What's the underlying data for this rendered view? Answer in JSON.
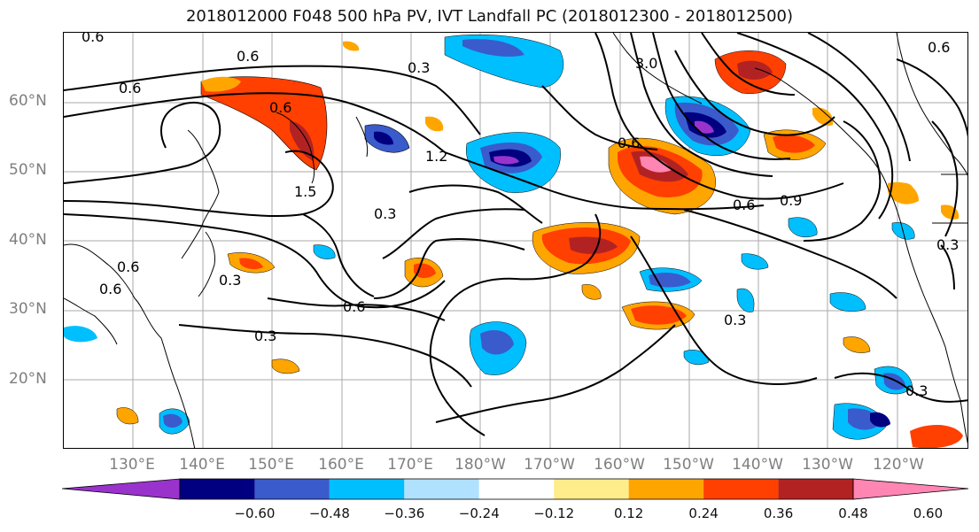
{
  "title": "2018012000 F048 500 hPa PV, IVT Landfall PC (2018012300 - 2018012500)",
  "lat_labels": [
    "60°N",
    "50°N",
    "40°N",
    "30°N",
    "20°N"
  ],
  "lon_labels": [
    "130°E",
    "140°E",
    "150°E",
    "160°E",
    "170°E",
    "180°W",
    "170°W",
    "160°W",
    "150°W",
    "140°W",
    "130°W",
    "120°W"
  ],
  "contour_labels": [
    "0.6",
    "0.6",
    "0.6",
    "0.3",
    "3.0",
    "0.6",
    "1.2",
    "1.5",
    "0.3",
    "0.6",
    "0.3",
    "0.6",
    "0.3",
    "0.6",
    "0.3",
    "0.6",
    "0.9",
    "0.6",
    "0.3",
    "0.3",
    "0.6"
  ],
  "colorbar": {
    "colors": [
      "#9933cc",
      "#000080",
      "#3a5bcc",
      "#00bfff",
      "#b0e2ff",
      "#ffffff",
      "#ffec8b",
      "#ffa500",
      "#ff4000",
      "#b22222",
      "#ff85b3"
    ],
    "ticks": [
      "−0.60",
      "−0.48",
      "−0.36",
      "−0.24",
      "−0.12",
      "0.12",
      "0.24",
      "0.36",
      "0.48",
      "0.60"
    ]
  }
}
